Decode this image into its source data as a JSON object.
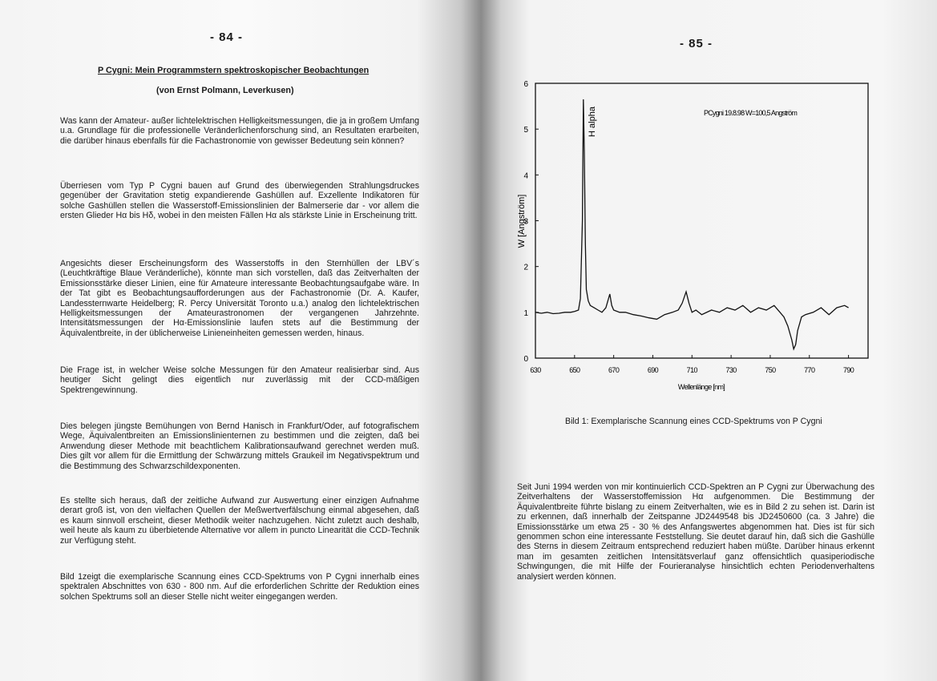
{
  "left_page": {
    "page_number": "- 84 -",
    "title": "P Cygni: Mein Programmstern spektroskopischer Beobachtungen",
    "author": "(von Ernst Polmann, Leverkusen)",
    "paragraphs": [
      "Was kann der Amateur- außer lichtelektrischen Helligkeitsmessungen, die ja in großem Umfang u.a. Grundlage für die professionelle Veränderlichenforschung sind, an Resultaten erarbeiten, die darüber hinaus ebenfalls für die Fachastronomie von gewisser Bedeutung sein können?",
      "Überriesen vom Typ P Cygni bauen auf Grund des überwiegenden Strahlungsdruckes gegenüber der Gravitation stetig expandierende Gashüllen auf. Exzellente Indikatoren für solche Gashüllen stellen die Wasserstoff-Emissionslinien der Balmerserie dar - vor allem die ersten Glieder Hα bis Hδ, wobei in den meisten Fällen Hα als stärkste Linie in Erscheinung tritt.",
      "Angesichts dieser Erscheinungsform des Wasserstoffs in den Sternhüllen der LBV´s (Leuchtkräftige Blaue Veränderliche), könnte man sich vorstellen, daß das Zeitverhalten der Emissionsstärke dieser Linien, eine für Amateure interessante Beobachtungsaufgabe wäre. In der Tat gibt es Beobachtungsaufforderungen aus der Fachastronomie (Dr. A. Kaufer, Landessternwarte Heidelberg; R. Percy Universität Toronto u.a.) analog den lichtelektrischen Helligkeitsmessungen der Amateurastronomen der vergangenen Jahrzehnte. Intensitätsmessungen der Hα-Emissionslinie laufen stets auf die Bestimmung der Äquivalentbreite, in der üblicherweise Linieneinheiten gemessen werden, hinaus.",
      "Die Frage ist, in welcher Weise solche Messungen für den Amateur realisierbar sind. Aus heutiger Sicht gelingt dies eigentlich nur zuverlässig mit der CCD-mäßigen Spektrengewinnung.",
      "Dies belegen jüngste Bemühungen von Bernd Hanisch in Frankfurt/Oder, auf fotografischem Wege, Äquivalentbreiten an Emissionslinienternen zu bestimmen und die zeigten, daß bei Anwendung dieser Methode mit beachtlichem Kalibrationsaufwand gerechnet werden muß. Dies gilt vor allem für die Ermittlung der Schwärzung mittels Graukeil im Negativspektrum und die Bestimmung des Schwarzschildexponenten.",
      "Es stellte sich heraus, daß der zeitliche Aufwand zur Auswertung einer einzigen Aufnahme derart groß ist, von den vielfachen Quellen der Meßwertverfälschung einmal abgesehen, daß es kaum sinnvoll erscheint, dieser Methodik weiter nachzugehen. Nicht zuletzt auch deshalb, weil heute als kaum zu überbietende Alternative vor allem in puncto Linearität die CCD-Technik zur Verfügung steht.",
      "Bild 1zeigt die exemplarische Scannung eines CCD-Spektrums von P Cygni innerhalb eines spektralen Abschnittes von 630 - 800 nm. Auf die erforderlichen Schritte der Reduktion eines solchen Spektrums soll an dieser Stelle nicht weiter eingegangen werden."
    ]
  },
  "right_page": {
    "page_number": "- 85 -",
    "caption": "Bild 1: Exemplarische Scannung eines CCD-Spektrums von P Cygni",
    "paragraphs": [
      "Seit Juni 1994 werden von mir kontinuierlich CCD-Spektren an P Cygni zur Überwachung des Zeitverhaltens der Wasserstoffemission Hα aufgenommen. Die Bestimmung der Äquivalentbreite führte bislang zu einem Zeitverhalten, wie es in Bild 2 zu sehen ist. Darin ist zu erkennen, daß innerhalb der Zeitspanne JD2449548 bis JD2450600 (ca. 3 Jahre) die Emissionsstärke um etwa 25 - 30 % des Anfangswertes abgenommen hat. Dies ist für sich genommen schon eine interessante Feststellung. Sie deutet darauf hin, daß sich die Gashülle des Sterns in diesem Zeitraum entsprechend reduziert haben müßte. Darüber hinaus erkennt man im gesamten zeitlichen Intensitätsverlauf ganz offensichtlich quasiperiodische Schwingungen, die mit Hilfe der Fourieranalyse hinsichtlich echten Periodenverhaltens analysiert werden können."
    ]
  },
  "chart_data": {
    "type": "line",
    "xlabel": "Wellenlänge [nm]",
    "ylabel": "W [Angström]",
    "annotations": [
      "H alpha",
      "PCygni 19.8.98 W=100,5 Angström"
    ],
    "x": [
      630,
      633,
      636,
      639,
      642,
      645,
      648,
      650,
      652,
      653,
      654,
      654.5,
      655,
      655.5,
      656,
      657,
      658,
      660,
      662,
      664,
      666,
      668,
      669,
      670,
      673,
      676,
      680,
      684,
      688,
      692,
      696,
      700,
      703,
      705,
      707,
      708.5,
      710,
      712,
      715,
      720,
      724,
      728,
      732,
      736,
      740,
      744,
      748,
      752,
      755,
      757,
      759,
      761,
      762,
      763,
      764,
      766,
      768,
      772,
      776,
      780,
      784,
      788,
      790
    ],
    "values": [
      1.0,
      0.98,
      1.0,
      0.97,
      0.98,
      1.0,
      1.0,
      1.02,
      1.05,
      1.3,
      3.0,
      5.65,
      4.5,
      2.5,
      1.5,
      1.25,
      1.15,
      1.1,
      1.05,
      1.0,
      1.1,
      1.4,
      1.15,
      1.05,
      1.0,
      1.0,
      0.95,
      0.92,
      0.88,
      0.85,
      0.95,
      1.0,
      1.05,
      1.2,
      1.45,
      1.2,
      1.0,
      1.05,
      0.95,
      1.05,
      1.0,
      1.1,
      1.05,
      1.15,
      1.0,
      1.1,
      1.05,
      1.15,
      1.0,
      0.9,
      0.7,
      0.4,
      0.2,
      0.3,
      0.6,
      0.9,
      0.95,
      1.0,
      1.1,
      0.95,
      1.1,
      1.15,
      1.1
    ],
    "color": "#111111",
    "xlim": [
      630,
      800
    ],
    "ylim": [
      0,
      6
    ],
    "xticks": [
      630,
      650,
      670,
      690,
      710,
      730,
      750,
      770,
      790
    ],
    "yticks": [
      0,
      1,
      2,
      3,
      4,
      5,
      6
    ]
  }
}
